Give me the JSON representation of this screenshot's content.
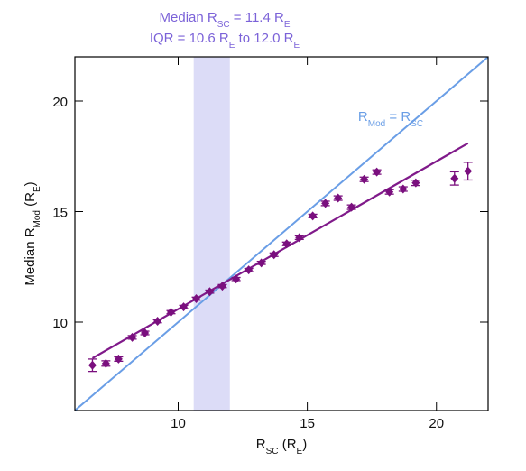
{
  "chart_data": {
    "type": "scatter",
    "annotation": [
      [
        "Median R",
        "SC",
        " = 11.4 R",
        "E"
      ],
      [
        "IQR = 10.6 R",
        "E",
        " to 12.0 R",
        "E"
      ]
    ],
    "annotation_color": "#7b62d8",
    "x_label": [
      "R",
      "SC",
      " (R",
      "E",
      ")"
    ],
    "y_label": [
      "Median R",
      "Mod",
      " (R",
      "E",
      ")"
    ],
    "iqr": [
      10.6,
      12.0
    ],
    "iqr_color": "#dcdcf7",
    "identity_label": [
      "R",
      "Mod",
      " = R",
      "SC"
    ],
    "identity_color": "#6a9ee6",
    "x": [
      6.68,
      7.2,
      7.69,
      8.22,
      8.71,
      9.2,
      9.72,
      10.21,
      10.7,
      11.22,
      11.71,
      12.24,
      12.73,
      13.22,
      13.71,
      14.2,
      14.69,
      15.21,
      15.7,
      16.19,
      16.71,
      17.2,
      17.69,
      18.18,
      18.71,
      19.2,
      20.7,
      21.22
    ],
    "values": [
      8.05,
      8.13,
      8.33,
      9.31,
      9.51,
      10.04,
      10.45,
      10.69,
      11.06,
      11.38,
      11.63,
      11.95,
      12.36,
      12.68,
      13.05,
      13.54,
      13.82,
      14.8,
      15.37,
      15.61,
      15.2,
      16.46,
      16.79,
      15.89,
      16.02,
      16.3,
      16.5,
      16.83
    ],
    "errors": [
      0.28,
      0.12,
      0.1,
      0.08,
      0.08,
      0.07,
      0.07,
      0.07,
      0.07,
      0.07,
      0.07,
      0.07,
      0.07,
      0.07,
      0.08,
      0.08,
      0.08,
      0.08,
      0.1,
      0.1,
      0.1,
      0.1,
      0.1,
      0.1,
      0.1,
      0.12,
      0.3,
      0.4
    ],
    "color": "#7a0f7e",
    "fit": {
      "x": [
        6.68,
        21.22
      ],
      "y": [
        8.37,
        18.09
      ]
    },
    "fit_color": "#801a8a",
    "xlim": [
      6,
      22
    ],
    "ylim": [
      6,
      22
    ],
    "xticks": [
      10,
      15,
      20
    ],
    "yticks": [
      10,
      15,
      20
    ]
  }
}
